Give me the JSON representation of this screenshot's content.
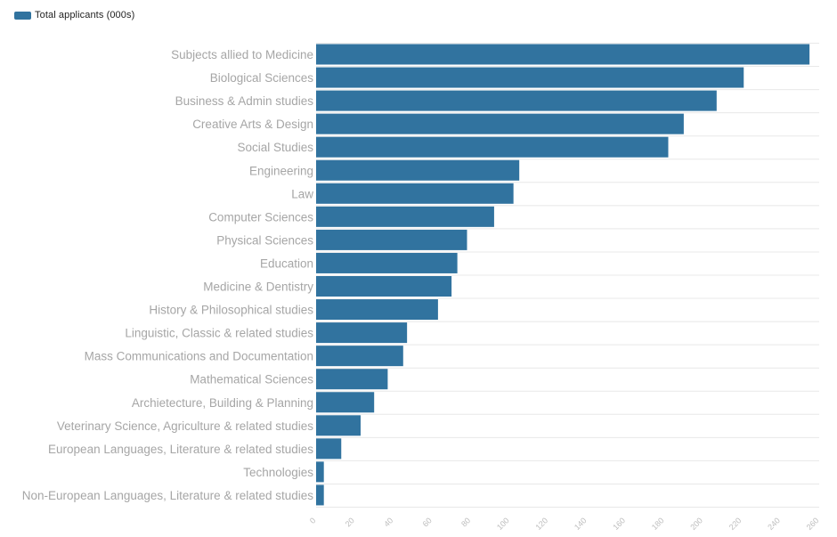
{
  "colors": {
    "bar": "#31739f",
    "grid": "#e8e8e8",
    "category_label": "#a6a6a6",
    "tick_label": "#bdbdbd",
    "legend_text": "#222222"
  },
  "legend": {
    "label": "Total applicants (000s)"
  },
  "chart_data": {
    "type": "bar",
    "orientation": "horizontal",
    "categories": [
      "Subjects allied to Medicine",
      "Biological Sciences",
      "Business & Admin studies",
      "Creative Arts & Design",
      "Social Studies",
      "Engineering",
      "Law",
      "Computer Sciences",
      "Physical Sciences",
      "Education",
      "Medicine & Dentistry",
      "History & Philosophical studies",
      "Linguistic, Classic & related studies",
      "Mass Communications and Documentation",
      "Mathematical Sciences",
      "Archietecture, Building & Planning",
      "Veterinary Science, Agriculture & related studies",
      "European Languages, Literature & related studies",
      "Technologies",
      "Non-European Languages, Literature & related studies"
    ],
    "series": [
      {
        "name": "Total applicants (000s)",
        "values": [
          255,
          221,
          207,
          190,
          182,
          105,
          102,
          92,
          78,
          73,
          70,
          63,
          47,
          45,
          37,
          30,
          23,
          13,
          4,
          4
        ]
      }
    ],
    "xlim": [
      0,
      260
    ],
    "xticks": [
      0,
      20,
      40,
      60,
      80,
      100,
      120,
      140,
      160,
      180,
      200,
      220,
      240,
      260
    ],
    "grid": true,
    "legend_position": "top-left",
    "title": "",
    "xlabel": "",
    "ylabel": ""
  }
}
